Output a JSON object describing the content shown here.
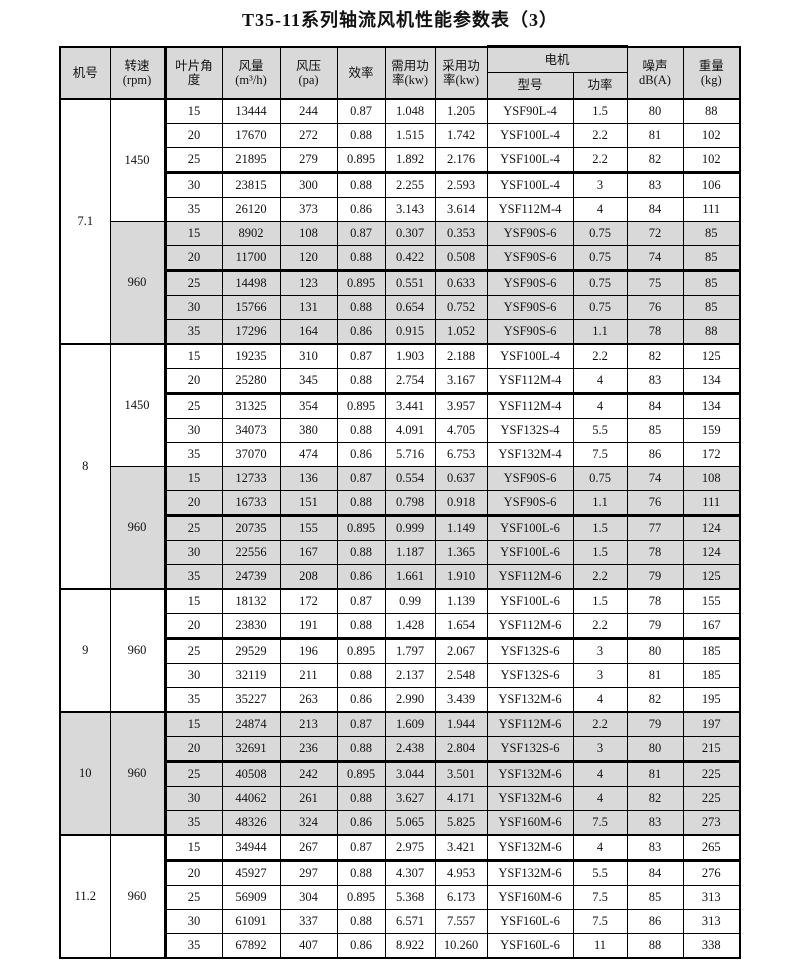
{
  "title": "T35-11系列轴流风机性能参数表（3）",
  "colors": {
    "row_shading": "#d9d9d9",
    "border": "#000000",
    "background": "#ffffff"
  },
  "table": {
    "headers": {
      "machine_no": "机号",
      "speed_line1": "转速",
      "speed_line2": "(rpm)",
      "blade_angle_line1": "叶片角",
      "blade_angle_line2": "度",
      "air_volume_line1": "风量",
      "air_volume_line2": "(m³/h)",
      "pressure_line1": "风压",
      "pressure_line2": "(pa)",
      "efficiency": "效率",
      "required_power_line1": "需用功",
      "required_power_line2": "率(kw)",
      "adopted_power_line1": "采用功",
      "adopted_power_line2": "率(kw)",
      "motor": "电机",
      "motor_model": "型号",
      "motor_power": "功率",
      "noise_line1": "噪声",
      "noise_line2": "dB(A)",
      "weight_line1": "重量",
      "weight_line2": "(kg)"
    },
    "groups": [
      {
        "machine_no": "7.1",
        "machine_shaded": false,
        "speed_blocks": [
          {
            "speed": "1450",
            "shaded": false,
            "rows": [
              {
                "angle": "15",
                "volume": "13444",
                "pressure": "244",
                "eff": "0.87",
                "req_kw": "1.048",
                "adopt_kw": "1.205",
                "model": "YSF90L-4",
                "power": "1.5",
                "noise": "80",
                "weight": "88",
                "thick_top": false
              },
              {
                "angle": "20",
                "volume": "17670",
                "pressure": "272",
                "eff": "0.88",
                "req_kw": "1.515",
                "adopt_kw": "1.742",
                "model": "YSF100L-4",
                "power": "2.2",
                "noise": "81",
                "weight": "102",
                "thick_top": false
              },
              {
                "angle": "25",
                "volume": "21895",
                "pressure": "279",
                "eff": "0.895",
                "req_kw": "1.892",
                "adopt_kw": "2.176",
                "model": "YSF100L-4",
                "power": "2.2",
                "noise": "82",
                "weight": "102",
                "thick_top": false
              },
              {
                "angle": "30",
                "volume": "23815",
                "pressure": "300",
                "eff": "0.88",
                "req_kw": "2.255",
                "adopt_kw": "2.593",
                "model": "YSF100L-4",
                "power": "3",
                "noise": "83",
                "weight": "106",
                "thick_top": true
              },
              {
                "angle": "35",
                "volume": "26120",
                "pressure": "373",
                "eff": "0.86",
                "req_kw": "3.143",
                "adopt_kw": "3.614",
                "model": "YSF112M-4",
                "power": "4",
                "noise": "84",
                "weight": "111",
                "thick_top": false
              }
            ]
          },
          {
            "speed": "960",
            "shaded": true,
            "rows": [
              {
                "angle": "15",
                "volume": "8902",
                "pressure": "108",
                "eff": "0.87",
                "req_kw": "0.307",
                "adopt_kw": "0.353",
                "model": "YSF90S-6",
                "power": "0.75",
                "noise": "72",
                "weight": "85",
                "thick_top": false
              },
              {
                "angle": "20",
                "volume": "11700",
                "pressure": "120",
                "eff": "0.88",
                "req_kw": "0.422",
                "adopt_kw": "0.508",
                "model": "YSF90S-6",
                "power": "0.75",
                "noise": "74",
                "weight": "85",
                "thick_top": false
              },
              {
                "angle": "25",
                "volume": "14498",
                "pressure": "123",
                "eff": "0.895",
                "req_kw": "0.551",
                "adopt_kw": "0.633",
                "model": "YSF90S-6",
                "power": "0.75",
                "noise": "75",
                "weight": "85",
                "thick_top": true
              },
              {
                "angle": "30",
                "volume": "15766",
                "pressure": "131",
                "eff": "0.88",
                "req_kw": "0.654",
                "adopt_kw": "0.752",
                "model": "YSF90S-6",
                "power": "0.75",
                "noise": "76",
                "weight": "85",
                "thick_top": false
              },
              {
                "angle": "35",
                "volume": "17296",
                "pressure": "164",
                "eff": "0.86",
                "req_kw": "0.915",
                "adopt_kw": "1.052",
                "model": "YSF90S-6",
                "power": "1.1",
                "noise": "78",
                "weight": "88",
                "thick_top": false
              }
            ]
          }
        ]
      },
      {
        "machine_no": "8",
        "machine_shaded": false,
        "speed_blocks": [
          {
            "speed": "1450",
            "shaded": false,
            "rows": [
              {
                "angle": "15",
                "volume": "19235",
                "pressure": "310",
                "eff": "0.87",
                "req_kw": "1.903",
                "adopt_kw": "2.188",
                "model": "YSF100L-4",
                "power": "2.2",
                "noise": "82",
                "weight": "125",
                "thick_top": false
              },
              {
                "angle": "20",
                "volume": "25280",
                "pressure": "345",
                "eff": "0.88",
                "req_kw": "2.754",
                "adopt_kw": "3.167",
                "model": "YSF112M-4",
                "power": "4",
                "noise": "83",
                "weight": "134",
                "thick_top": false
              },
              {
                "angle": "25",
                "volume": "31325",
                "pressure": "354",
                "eff": "0.895",
                "req_kw": "3.441",
                "adopt_kw": "3.957",
                "model": "YSF112M-4",
                "power": "4",
                "noise": "84",
                "weight": "134",
                "thick_top": true
              },
              {
                "angle": "30",
                "volume": "34073",
                "pressure": "380",
                "eff": "0.88",
                "req_kw": "4.091",
                "adopt_kw": "4.705",
                "model": "YSF132S-4",
                "power": "5.5",
                "noise": "85",
                "weight": "159",
                "thick_top": false
              },
              {
                "angle": "35",
                "volume": "37070",
                "pressure": "474",
                "eff": "0.86",
                "req_kw": "5.716",
                "adopt_kw": "6.753",
                "model": "YSF132M-4",
                "power": "7.5",
                "noise": "86",
                "weight": "172",
                "thick_top": false
              }
            ]
          },
          {
            "speed": "960",
            "shaded": true,
            "rows": [
              {
                "angle": "15",
                "volume": "12733",
                "pressure": "136",
                "eff": "0.87",
                "req_kw": "0.554",
                "adopt_kw": "0.637",
                "model": "YSF90S-6",
                "power": "0.75",
                "noise": "74",
                "weight": "108",
                "thick_top": false
              },
              {
                "angle": "20",
                "volume": "16733",
                "pressure": "151",
                "eff": "0.88",
                "req_kw": "0.798",
                "adopt_kw": "0.918",
                "model": "YSF90S-6",
                "power": "1.1",
                "noise": "76",
                "weight": "111",
                "thick_top": false
              },
              {
                "angle": "25",
                "volume": "20735",
                "pressure": "155",
                "eff": "0.895",
                "req_kw": "0.999",
                "adopt_kw": "1.149",
                "model": "YSF100L-6",
                "power": "1.5",
                "noise": "77",
                "weight": "124",
                "thick_top": true
              },
              {
                "angle": "30",
                "volume": "22556",
                "pressure": "167",
                "eff": "0.88",
                "req_kw": "1.187",
                "adopt_kw": "1.365",
                "model": "YSF100L-6",
                "power": "1.5",
                "noise": "78",
                "weight": "124",
                "thick_top": false
              },
              {
                "angle": "35",
                "volume": "24739",
                "pressure": "208",
                "eff": "0.86",
                "req_kw": "1.661",
                "adopt_kw": "1.910",
                "model": "YSF112M-6",
                "power": "2.2",
                "noise": "79",
                "weight": "125",
                "thick_top": false
              }
            ]
          }
        ]
      },
      {
        "machine_no": "9",
        "machine_shaded": false,
        "speed_blocks": [
          {
            "speed": "960",
            "shaded": false,
            "rows": [
              {
                "angle": "15",
                "volume": "18132",
                "pressure": "172",
                "eff": "0.87",
                "req_kw": "0.99",
                "adopt_kw": "1.139",
                "model": "YSF100L-6",
                "power": "1.5",
                "noise": "78",
                "weight": "155",
                "thick_top": false
              },
              {
                "angle": "20",
                "volume": "23830",
                "pressure": "191",
                "eff": "0.88",
                "req_kw": "1.428",
                "adopt_kw": "1.654",
                "model": "YSF112M-6",
                "power": "2.2",
                "noise": "79",
                "weight": "167",
                "thick_top": false
              },
              {
                "angle": "25",
                "volume": "29529",
                "pressure": "196",
                "eff": "0.895",
                "req_kw": "1.797",
                "adopt_kw": "2.067",
                "model": "YSF132S-6",
                "power": "3",
                "noise": "80",
                "weight": "185",
                "thick_top": true
              },
              {
                "angle": "30",
                "volume": "32119",
                "pressure": "211",
                "eff": "0.88",
                "req_kw": "2.137",
                "adopt_kw": "2.548",
                "model": "YSF132S-6",
                "power": "3",
                "noise": "81",
                "weight": "185",
                "thick_top": false
              },
              {
                "angle": "35",
                "volume": "35227",
                "pressure": "263",
                "eff": "0.86",
                "req_kw": "2.990",
                "adopt_kw": "3.439",
                "model": "YSF132M-6",
                "power": "4",
                "noise": "82",
                "weight": "195",
                "thick_top": false
              }
            ]
          }
        ]
      },
      {
        "machine_no": "10",
        "machine_shaded": true,
        "speed_blocks": [
          {
            "speed": "960",
            "shaded": true,
            "rows": [
              {
                "angle": "15",
                "volume": "24874",
                "pressure": "213",
                "eff": "0.87",
                "req_kw": "1.609",
                "adopt_kw": "1.944",
                "model": "YSF112M-6",
                "power": "2.2",
                "noise": "79",
                "weight": "197",
                "thick_top": false
              },
              {
                "angle": "20",
                "volume": "32691",
                "pressure": "236",
                "eff": "0.88",
                "req_kw": "2.438",
                "adopt_kw": "2.804",
                "model": "YSF132S-6",
                "power": "3",
                "noise": "80",
                "weight": "215",
                "thick_top": false
              },
              {
                "angle": "25",
                "volume": "40508",
                "pressure": "242",
                "eff": "0.895",
                "req_kw": "3.044",
                "adopt_kw": "3.501",
                "model": "YSF132M-6",
                "power": "4",
                "noise": "81",
                "weight": "225",
                "thick_top": true
              },
              {
                "angle": "30",
                "volume": "44062",
                "pressure": "261",
                "eff": "0.88",
                "req_kw": "3.627",
                "adopt_kw": "4.171",
                "model": "YSF132M-6",
                "power": "4",
                "noise": "82",
                "weight": "225",
                "thick_top": false
              },
              {
                "angle": "35",
                "volume": "48326",
                "pressure": "324",
                "eff": "0.86",
                "req_kw": "5.065",
                "adopt_kw": "5.825",
                "model": "YSF160M-6",
                "power": "7.5",
                "noise": "83",
                "weight": "273",
                "thick_top": false
              }
            ]
          }
        ]
      },
      {
        "machine_no": "11.2",
        "machine_shaded": false,
        "speed_blocks": [
          {
            "speed": "960",
            "shaded": false,
            "rows": [
              {
                "angle": "15",
                "volume": "34944",
                "pressure": "267",
                "eff": "0.87",
                "req_kw": "2.975",
                "adopt_kw": "3.421",
                "model": "YSF132M-6",
                "power": "4",
                "noise": "83",
                "weight": "265",
                "thick_top": false
              },
              {
                "angle": "20",
                "volume": "45927",
                "pressure": "297",
                "eff": "0.88",
                "req_kw": "4.307",
                "adopt_kw": "4.953",
                "model": "YSF132M-6",
                "power": "5.5",
                "noise": "84",
                "weight": "276",
                "thick_top": true
              },
              {
                "angle": "25",
                "volume": "56909",
                "pressure": "304",
                "eff": "0.895",
                "req_kw": "5.368",
                "adopt_kw": "6.173",
                "model": "YSF160M-6",
                "power": "7.5",
                "noise": "85",
                "weight": "313",
                "thick_top": false
              },
              {
                "angle": "30",
                "volume": "61091",
                "pressure": "337",
                "eff": "0.88",
                "req_kw": "6.571",
                "adopt_kw": "7.557",
                "model": "YSF160L-6",
                "power": "7.5",
                "noise": "86",
                "weight": "313",
                "thick_top": false
              },
              {
                "angle": "35",
                "volume": "67892",
                "pressure": "407",
                "eff": "0.86",
                "req_kw": "8.922",
                "adopt_kw": "10.260",
                "model": "YSF160L-6",
                "power": "11",
                "noise": "88",
                "weight": "338",
                "thick_top": false
              }
            ]
          }
        ]
      }
    ]
  }
}
